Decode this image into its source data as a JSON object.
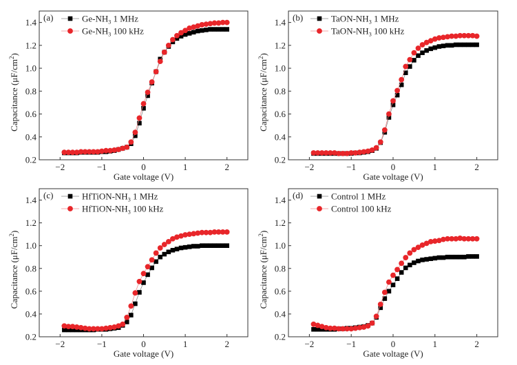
{
  "figure": {
    "x_tick_labels": [
      "−2",
      "−1",
      "0",
      "1",
      "2"
    ],
    "y_tick_labels": [
      "0.2",
      "0.4",
      "0.6",
      "0.8",
      "1.0",
      "1.2",
      "1.4"
    ]
  },
  "chart_data": [
    {
      "type": "line",
      "panel": "(a)",
      "title": "",
      "xlabel": "Gate voltage (V)",
      "ylabel": "Capacitance (μF/cm²)",
      "xlim": [
        -2.5,
        2.5
      ],
      "ylim": [
        0.2,
        1.5
      ],
      "xticks": [
        -2,
        -1,
        0,
        1,
        2
      ],
      "yticks": [
        0.2,
        0.4,
        0.6,
        0.8,
        1.0,
        1.2,
        1.4
      ],
      "grid": false,
      "legend_position": "top-left",
      "x": [
        -1.9,
        -1.8,
        -1.7,
        -1.6,
        -1.5,
        -1.4,
        -1.3,
        -1.2,
        -1.1,
        -1.0,
        -0.9,
        -0.8,
        -0.7,
        -0.6,
        -0.5,
        -0.4,
        -0.3,
        -0.2,
        -0.1,
        0.0,
        0.1,
        0.2,
        0.3,
        0.4,
        0.5,
        0.6,
        0.7,
        0.8,
        0.9,
        1.0,
        1.1,
        1.2,
        1.3,
        1.4,
        1.5,
        1.6,
        1.7,
        1.8,
        1.9,
        2.0
      ],
      "series": [
        {
          "name": "Ge-NH",
          "sub": "3",
          "suffix": " 1 MHz",
          "marker": "square",
          "color": "#000000",
          "line_color": "#888888",
          "values": [
            0.26,
            0.26,
            0.26,
            0.26,
            0.265,
            0.265,
            0.265,
            0.265,
            0.265,
            0.27,
            0.27,
            0.275,
            0.28,
            0.29,
            0.3,
            0.31,
            0.34,
            0.41,
            0.52,
            0.65,
            0.76,
            0.87,
            0.97,
            1.08,
            1.14,
            1.19,
            1.23,
            1.26,
            1.28,
            1.295,
            1.305,
            1.315,
            1.325,
            1.33,
            1.335,
            1.34,
            1.34,
            1.34,
            1.34,
            1.34
          ]
        },
        {
          "name": "Ge-NH",
          "sub": "3",
          "suffix": " 100 kHz",
          "marker": "circle",
          "color": "#e8262a",
          "line_color": "#f08a8c",
          "values": [
            0.265,
            0.265,
            0.265,
            0.265,
            0.27,
            0.27,
            0.27,
            0.27,
            0.27,
            0.275,
            0.28,
            0.28,
            0.285,
            0.29,
            0.3,
            0.31,
            0.355,
            0.44,
            0.565,
            0.69,
            0.79,
            0.88,
            0.97,
            1.06,
            1.14,
            1.2,
            1.25,
            1.285,
            1.31,
            1.33,
            1.35,
            1.36,
            1.37,
            1.38,
            1.385,
            1.39,
            1.395,
            1.395,
            1.4,
            1.4
          ]
        }
      ]
    },
    {
      "type": "line",
      "panel": "(b)",
      "title": "",
      "xlabel": "Gate voltage (V)",
      "ylabel": "Capacitance (μF/cm²)",
      "xlim": [
        -2.5,
        2.5
      ],
      "ylim": [
        0.2,
        1.5
      ],
      "xticks": [
        -2,
        -1,
        0,
        1,
        2
      ],
      "yticks": [
        0.2,
        0.4,
        0.6,
        0.8,
        1.0,
        1.2,
        1.4
      ],
      "grid": false,
      "legend_position": "top-left",
      "x": [
        -1.9,
        -1.8,
        -1.7,
        -1.6,
        -1.5,
        -1.4,
        -1.3,
        -1.2,
        -1.1,
        -1.0,
        -0.9,
        -0.8,
        -0.7,
        -0.6,
        -0.5,
        -0.4,
        -0.3,
        -0.2,
        -0.1,
        0.0,
        0.1,
        0.2,
        0.3,
        0.4,
        0.5,
        0.6,
        0.7,
        0.8,
        0.9,
        1.0,
        1.1,
        1.2,
        1.3,
        1.4,
        1.5,
        1.6,
        1.7,
        1.8,
        1.9,
        2.0
      ],
      "series": [
        {
          "name": "TaON-NH",
          "sub": "3",
          "suffix": " 1 MHz",
          "marker": "square",
          "color": "#000000",
          "line_color": "#888888",
          "values": [
            0.255,
            0.255,
            0.255,
            0.255,
            0.255,
            0.255,
            0.255,
            0.255,
            0.255,
            0.255,
            0.26,
            0.26,
            0.265,
            0.27,
            0.28,
            0.3,
            0.35,
            0.44,
            0.57,
            0.68,
            0.765,
            0.855,
            0.96,
            1.015,
            1.07,
            1.11,
            1.135,
            1.155,
            1.17,
            1.18,
            1.19,
            1.195,
            1.2,
            1.2,
            1.205,
            1.205,
            1.205,
            1.205,
            1.205,
            1.205
          ]
        },
        {
          "name": "TaON-NH",
          "sub": "3",
          "suffix": " 100 kHz",
          "marker": "circle",
          "color": "#e8262a",
          "line_color": "#f08a8c",
          "values": [
            0.26,
            0.26,
            0.26,
            0.26,
            0.26,
            0.26,
            0.255,
            0.255,
            0.255,
            0.26,
            0.26,
            0.265,
            0.27,
            0.275,
            0.285,
            0.305,
            0.355,
            0.46,
            0.6,
            0.715,
            0.805,
            0.9,
            1.015,
            1.075,
            1.135,
            1.175,
            1.205,
            1.225,
            1.24,
            1.255,
            1.265,
            1.27,
            1.275,
            1.28,
            1.28,
            1.285,
            1.285,
            1.285,
            1.285,
            1.28
          ]
        }
      ]
    },
    {
      "type": "line",
      "panel": "(c)",
      "title": "",
      "xlabel": "Gate voltage (V)",
      "ylabel": "Capacitance (μF/cm²)",
      "xlim": [
        -2.5,
        2.5
      ],
      "ylim": [
        0.2,
        1.5
      ],
      "xticks": [
        -2,
        -1,
        0,
        1,
        2
      ],
      "yticks": [
        0.2,
        0.4,
        0.6,
        0.8,
        1.0,
        1.2,
        1.4
      ],
      "grid": false,
      "legend_position": "top-left",
      "x": [
        -1.9,
        -1.8,
        -1.7,
        -1.6,
        -1.5,
        -1.4,
        -1.3,
        -1.2,
        -1.1,
        -1.0,
        -0.9,
        -0.8,
        -0.7,
        -0.6,
        -0.5,
        -0.4,
        -0.3,
        -0.2,
        -0.1,
        0.0,
        0.1,
        0.2,
        0.3,
        0.4,
        0.5,
        0.6,
        0.7,
        0.8,
        0.9,
        1.0,
        1.1,
        1.2,
        1.3,
        1.4,
        1.5,
        1.6,
        1.7,
        1.8,
        1.9,
        2.0
      ],
      "series": [
        {
          "name": "HfTiON-NH",
          "sub": "3",
          "suffix": " 1 MHz",
          "marker": "square",
          "color": "#000000",
          "line_color": "#888888",
          "values": [
            0.26,
            0.26,
            0.26,
            0.26,
            0.26,
            0.26,
            0.26,
            0.26,
            0.265,
            0.265,
            0.265,
            0.27,
            0.275,
            0.28,
            0.3,
            0.33,
            0.39,
            0.49,
            0.59,
            0.675,
            0.745,
            0.805,
            0.86,
            0.9,
            0.925,
            0.945,
            0.96,
            0.97,
            0.98,
            0.985,
            0.99,
            0.995,
            0.995,
            1.0,
            1.0,
            1.0,
            1.0,
            1.0,
            1.0,
            1.0
          ]
        },
        {
          "name": "HfTiON-NH",
          "sub": "3",
          "suffix": " 100 kHz",
          "marker": "circle",
          "color": "#e8262a",
          "line_color": "#f08a8c",
          "values": [
            0.295,
            0.29,
            0.29,
            0.285,
            0.28,
            0.275,
            0.27,
            0.27,
            0.27,
            0.27,
            0.275,
            0.28,
            0.285,
            0.295,
            0.31,
            0.37,
            0.47,
            0.585,
            0.685,
            0.755,
            0.815,
            0.875,
            0.935,
            0.98,
            1.01,
            1.035,
            1.06,
            1.075,
            1.085,
            1.095,
            1.1,
            1.105,
            1.11,
            1.115,
            1.115,
            1.115,
            1.12,
            1.12,
            1.12,
            1.12
          ]
        }
      ]
    },
    {
      "type": "line",
      "panel": "(d)",
      "title": "",
      "xlabel": "Gate voltage (V)",
      "ylabel": "Capacitance (μF/cm²)",
      "xlim": [
        -2.5,
        2.5
      ],
      "ylim": [
        0.2,
        1.5
      ],
      "xticks": [
        -2,
        -1,
        0,
        1,
        2
      ],
      "yticks": [
        0.2,
        0.4,
        0.6,
        0.8,
        1.0,
        1.2,
        1.4
      ],
      "grid": false,
      "legend_position": "top-left",
      "x": [
        -1.9,
        -1.8,
        -1.7,
        -1.6,
        -1.5,
        -1.4,
        -1.3,
        -1.2,
        -1.1,
        -1.0,
        -0.9,
        -0.8,
        -0.7,
        -0.6,
        -0.5,
        -0.4,
        -0.3,
        -0.2,
        -0.1,
        0.0,
        0.1,
        0.2,
        0.3,
        0.4,
        0.5,
        0.6,
        0.7,
        0.8,
        0.9,
        1.0,
        1.1,
        1.2,
        1.3,
        1.4,
        1.5,
        1.6,
        1.7,
        1.8,
        1.9,
        2.0
      ],
      "series": [
        {
          "name": "Control",
          "sub": "",
          "suffix": " 1 MHz",
          "marker": "square",
          "color": "#000000",
          "line_color": "#888888",
          "values": [
            0.265,
            0.265,
            0.265,
            0.265,
            0.265,
            0.265,
            0.27,
            0.27,
            0.275,
            0.275,
            0.28,
            0.285,
            0.29,
            0.3,
            0.32,
            0.37,
            0.455,
            0.535,
            0.6,
            0.655,
            0.71,
            0.765,
            0.805,
            0.83,
            0.85,
            0.865,
            0.875,
            0.88,
            0.885,
            0.89,
            0.895,
            0.895,
            0.9,
            0.9,
            0.9,
            0.9,
            0.9,
            0.905,
            0.905,
            0.905
          ]
        },
        {
          "name": "Control",
          "sub": "",
          "suffix": " 100 kHz",
          "marker": "circle",
          "color": "#e8262a",
          "line_color": "#f08a8c",
          "values": [
            0.31,
            0.3,
            0.29,
            0.28,
            0.275,
            0.275,
            0.27,
            0.27,
            0.27,
            0.27,
            0.275,
            0.28,
            0.285,
            0.295,
            0.32,
            0.38,
            0.485,
            0.59,
            0.68,
            0.74,
            0.79,
            0.845,
            0.895,
            0.935,
            0.965,
            0.985,
            1.005,
            1.02,
            1.035,
            1.04,
            1.045,
            1.055,
            1.06,
            1.06,
            1.06,
            1.065,
            1.06,
            1.06,
            1.06,
            1.06
          ]
        }
      ]
    }
  ]
}
